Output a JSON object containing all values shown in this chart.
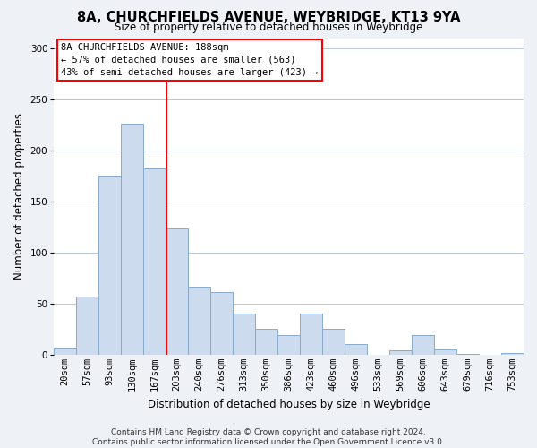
{
  "title": "8A, CHURCHFIELDS AVENUE, WEYBRIDGE, KT13 9YA",
  "subtitle": "Size of property relative to detached houses in Weybridge",
  "bar_labels": [
    "20sqm",
    "57sqm",
    "93sqm",
    "130sqm",
    "167sqm",
    "203sqm",
    "240sqm",
    "276sqm",
    "313sqm",
    "350sqm",
    "386sqm",
    "423sqm",
    "460sqm",
    "496sqm",
    "533sqm",
    "569sqm",
    "606sqm",
    "643sqm",
    "679sqm",
    "716sqm",
    "753sqm"
  ],
  "bar_heights": [
    7,
    57,
    175,
    226,
    182,
    124,
    67,
    61,
    40,
    25,
    19,
    40,
    25,
    10,
    0,
    4,
    19,
    5,
    1,
    0,
    2
  ],
  "bar_color": "#ccdcee",
  "bar_edgecolor": "#88aacc",
  "bar_width": 1.0,
  "ylabel": "Number of detached properties",
  "xlabel": "Distribution of detached houses by size in Weybridge",
  "ylim": [
    0,
    310
  ],
  "yticks": [
    0,
    50,
    100,
    150,
    200,
    250,
    300
  ],
  "vline_index": 4.54,
  "vline_color": "red",
  "annotation_title": "8A CHURCHFIELDS AVENUE: 188sqm",
  "annotation_line1": "← 57% of detached houses are smaller (563)",
  "annotation_line2": "43% of semi-detached houses are larger (423) →",
  "annotation_box_color": "white",
  "annotation_box_edgecolor": "red",
  "footer_line1": "Contains HM Land Registry data © Crown copyright and database right 2024.",
  "footer_line2": "Contains public sector information licensed under the Open Government Licence v3.0.",
  "background_color": "#eef2f7",
  "plot_background": "white",
  "grid_color": "#b8c8dc",
  "title_fontsize": 10.5,
  "subtitle_fontsize": 8.5,
  "ylabel_fontsize": 8.5,
  "xlabel_fontsize": 8.5,
  "tick_fontsize": 7.5,
  "footer_fontsize": 6.5,
  "annot_fontsize": 7.5
}
